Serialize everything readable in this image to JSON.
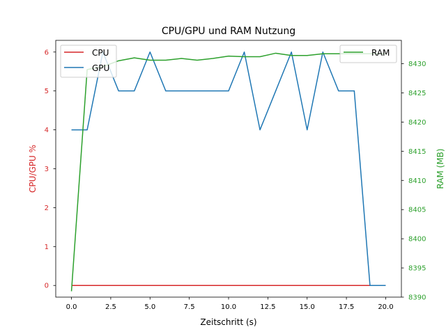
{
  "chart_data": {
    "type": "line",
    "title": "CPU/GPU und RAM Nutzung",
    "xlabel": "Zeitschritt (s)",
    "ylabel_left": "CPU/GPU %",
    "ylabel_right": "RAM (MB)",
    "xlim": [
      -1,
      21
    ],
    "ylim_left": [
      -0.3,
      6.3
    ],
    "ylim_right": [
      8390,
      8434
    ],
    "xticks": [
      0,
      2.5,
      5,
      7.5,
      10,
      12.5,
      15,
      17.5,
      20
    ],
    "xtick_labels": [
      "0.0",
      "2.5",
      "5.0",
      "7.5",
      "10.0",
      "12.5",
      "15.0",
      "17.5",
      "20.0"
    ],
    "yticks_left": [
      0,
      1,
      2,
      3,
      4,
      5,
      6
    ],
    "ytick_left_labels": [
      "0",
      "1",
      "2",
      "3",
      "4",
      "5",
      "6"
    ],
    "yticks_right": [
      8390,
      8395,
      8400,
      8405,
      8410,
      8415,
      8420,
      8425,
      8430
    ],
    "ytick_right_labels": [
      "8390",
      "8395",
      "8400",
      "8405",
      "8410",
      "8415",
      "8420",
      "8425",
      "8430"
    ],
    "grid": false,
    "x": [
      0,
      1,
      2,
      3,
      4,
      5,
      6,
      7,
      8,
      9,
      10,
      11,
      12,
      13,
      14,
      15,
      16,
      17,
      18,
      19,
      20
    ],
    "series": [
      {
        "name": "CPU",
        "axis": "left",
        "color": "#d62728",
        "values": [
          0,
          0,
          0,
          0,
          0,
          0,
          0,
          0,
          0,
          0,
          0,
          0,
          0,
          0,
          0,
          0,
          0,
          0,
          0,
          0,
          0
        ]
      },
      {
        "name": "GPU",
        "axis": "left",
        "color": "#1f77b4",
        "values": [
          4,
          4,
          6,
          5,
          5,
          6,
          5,
          5,
          5,
          5,
          5,
          6,
          4,
          5,
          6,
          4,
          6,
          5,
          5,
          0,
          0
        ]
      },
      {
        "name": "RAM",
        "axis": "right",
        "color": "#2ca02c",
        "values": [
          8391,
          8429,
          8429.5,
          8430.5,
          8431,
          8430.6,
          8430.6,
          8430.9,
          8430.6,
          8430.9,
          8431.3,
          8431.2,
          8431.2,
          8431.8,
          8431.4,
          8431.4,
          8431.7,
          8431.7,
          8431.7,
          8431.7,
          8431.7
        ]
      }
    ],
    "legend_left": {
      "placement": "top-left",
      "entries": [
        "CPU",
        "GPU"
      ]
    },
    "legend_right": {
      "placement": "top-right",
      "entries": [
        "RAM"
      ]
    }
  }
}
